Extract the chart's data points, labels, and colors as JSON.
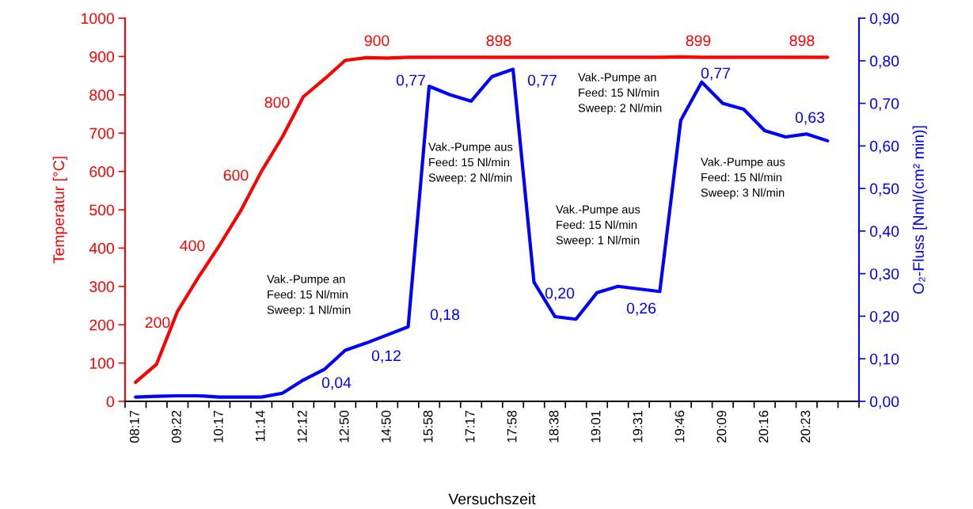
{
  "chart_data": {
    "type": "line",
    "xlabel": "Versuchszeit",
    "ylabel": "Temperatur [°C]",
    "y2label": "O₂-Fluss [Nml/(cm² min)]",
    "categories": [
      "08:17",
      null,
      "09:22",
      null,
      "10:17",
      null,
      "11:14",
      null,
      "12:12",
      null,
      "12:50",
      null,
      "14:50",
      null,
      "15:58",
      null,
      "17:17",
      null,
      "17:58",
      null,
      "18:38",
      null,
      "19:01",
      null,
      "19:31",
      null,
      "19:46",
      null,
      "20:09",
      null,
      "20:16",
      null,
      "20:23",
      null,
      null
    ],
    "series": [
      {
        "color": "#ff0000",
        "values": [
          50,
          97,
          235,
          324,
          407,
          496,
          600,
          690,
          795,
          841,
          890,
          897,
          896,
          898,
          898,
          898,
          898,
          898,
          898,
          898,
          898,
          898,
          898,
          898,
          898,
          898,
          899,
          898,
          898,
          898,
          898,
          898,
          898,
          898,
          null
        ]
      },
      {
        "color": "#0000ff",
        "axis": "y2",
        "values": [
          0.01,
          0.012,
          0.013,
          0.013,
          0.01,
          0.01,
          0.01,
          0.019,
          0.05,
          0.075,
          0.12,
          0.137,
          0.156,
          0.175,
          0.74,
          0.72,
          0.705,
          0.763,
          0.78,
          0.28,
          0.199,
          0.193,
          0.255,
          0.27,
          0.264,
          0.258,
          0.66,
          0.75,
          0.7,
          0.686,
          0.636,
          0.621,
          0.628,
          0.612,
          null
        ]
      }
    ],
    "ylim": [
      0,
      1000
    ],
    "yticks": [
      0,
      100,
      200,
      300,
      400,
      500,
      600,
      700,
      800,
      900,
      1000
    ],
    "y2lim": [
      0,
      0.9
    ],
    "y2ticks": [
      {
        "value": 0,
        "label": "0,00"
      },
      {
        "value": 0.1,
        "label": "0,10"
      },
      {
        "value": 0.2,
        "label": "0,20"
      },
      {
        "value": 0.3,
        "label": "0,30"
      },
      {
        "value": 0.4,
        "label": "0,40"
      },
      {
        "value": 0.5,
        "label": "0,50"
      },
      {
        "value": 0.6,
        "label": "0,60"
      },
      {
        "value": 0.7,
        "label": "0,70"
      },
      {
        "value": 0.8,
        "label": "0,80"
      },
      {
        "value": 0.9,
        "label": "0,90"
      }
    ],
    "grid": false,
    "legend": false,
    "annotations": [
      "200",
      "400",
      "600",
      "800",
      "900",
      "898",
      "899",
      "898",
      "0,77",
      "0,18",
      "0,12",
      "0,04",
      "0,77",
      "0,20",
      "0,26",
      "0,77",
      "0,63",
      "Vak.-Pumpe an\nFeed: 15 Nl/min\nSweep: 1 Nl/min",
      "Vak.-Pumpe aus\nFeed: 15 Nl/min\nSweep: 2 Nl/min",
      "Vak.-Pumpe an\nFeed: 15 Nl/min\nSweep: 2 Nl/min",
      "Vak.-Pumpe aus\nFeed: 15 Nl/min\nSweep: 1 Nl/min",
      "Vak.-Pumpe aus\nFeed: 15 Nl/min\nSweep: 3 Nl/min"
    ]
  }
}
